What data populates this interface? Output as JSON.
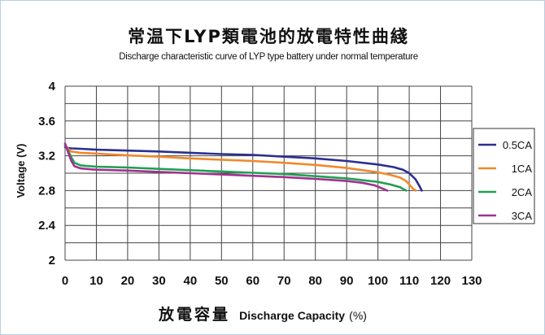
{
  "chart_data": {
    "type": "line",
    "title": "常温下LYP類電池的放電特性曲綫",
    "subtitle": "Discharge characteristic curve of LYP type battery under normal temperature",
    "ylabel": "Voltage (V)",
    "xlabel_cn": "放電容量",
    "xlabel_en": "Discharge Capacity",
    "xlabel_unit": "(%)",
    "xlim": [
      0,
      130
    ],
    "ylim": [
      2,
      4
    ],
    "xticks": [
      "0",
      "10",
      "20",
      "30",
      "40",
      "50",
      "60",
      "70",
      "80",
      "90",
      "100",
      "110",
      "120",
      "130"
    ],
    "yticks": [
      "2",
      "2.4",
      "2.8",
      "3.2",
      "3.6",
      "4"
    ],
    "grid": true,
    "legend_position": "right",
    "series": [
      {
        "name": "0.5CA",
        "color": "#2b2f8f",
        "points": [
          [
            0,
            3.3
          ],
          [
            1,
            3.29
          ],
          [
            2,
            3.285
          ],
          [
            5,
            3.28
          ],
          [
            10,
            3.27
          ],
          [
            20,
            3.26
          ],
          [
            30,
            3.25
          ],
          [
            40,
            3.235
          ],
          [
            50,
            3.22
          ],
          [
            60,
            3.21
          ],
          [
            70,
            3.19
          ],
          [
            80,
            3.17
          ],
          [
            90,
            3.14
          ],
          [
            100,
            3.1
          ],
          [
            105,
            3.07
          ],
          [
            108,
            3.04
          ],
          [
            110,
            3.0
          ],
          [
            112,
            2.93
          ],
          [
            113,
            2.87
          ],
          [
            114,
            2.8
          ]
        ]
      },
      {
        "name": "1CA",
        "color": "#f0892c",
        "points": [
          [
            0,
            3.32
          ],
          [
            1,
            3.28
          ],
          [
            2,
            3.25
          ],
          [
            5,
            3.235
          ],
          [
            10,
            3.225
          ],
          [
            20,
            3.205
          ],
          [
            30,
            3.19
          ],
          [
            40,
            3.17
          ],
          [
            50,
            3.155
          ],
          [
            60,
            3.14
          ],
          [
            70,
            3.12
          ],
          [
            80,
            3.095
          ],
          [
            90,
            3.06
          ],
          [
            100,
            3.01
          ],
          [
            104,
            2.98
          ],
          [
            107,
            2.95
          ],
          [
            109,
            2.91
          ],
          [
            110,
            2.87
          ],
          [
            111,
            2.83
          ],
          [
            112,
            2.8
          ]
        ]
      },
      {
        "name": "2CA",
        "color": "#20a052",
        "points": [
          [
            0,
            3.33
          ],
          [
            1,
            3.26
          ],
          [
            2,
            3.18
          ],
          [
            3,
            3.12
          ],
          [
            5,
            3.09
          ],
          [
            8,
            3.08
          ],
          [
            10,
            3.075
          ],
          [
            20,
            3.065
          ],
          [
            30,
            3.05
          ],
          [
            40,
            3.035
          ],
          [
            50,
            3.02
          ],
          [
            60,
            3.005
          ],
          [
            70,
            2.99
          ],
          [
            80,
            2.965
          ],
          [
            90,
            2.94
          ],
          [
            100,
            2.9
          ],
          [
            104,
            2.87
          ],
          [
            107,
            2.84
          ],
          [
            109,
            2.8
          ]
        ]
      },
      {
        "name": "3CA",
        "color": "#a13090",
        "points": [
          [
            0,
            3.34
          ],
          [
            1,
            3.24
          ],
          [
            2,
            3.14
          ],
          [
            3,
            3.08
          ],
          [
            5,
            3.055
          ],
          [
            8,
            3.045
          ],
          [
            10,
            3.04
          ],
          [
            20,
            3.03
          ],
          [
            30,
            3.015
          ],
          [
            40,
            3.0
          ],
          [
            50,
            2.985
          ],
          [
            60,
            2.97
          ],
          [
            70,
            2.955
          ],
          [
            80,
            2.935
          ],
          [
            90,
            2.91
          ],
          [
            95,
            2.89
          ],
          [
            99,
            2.86
          ],
          [
            101,
            2.83
          ],
          [
            103,
            2.8
          ]
        ]
      }
    ]
  }
}
